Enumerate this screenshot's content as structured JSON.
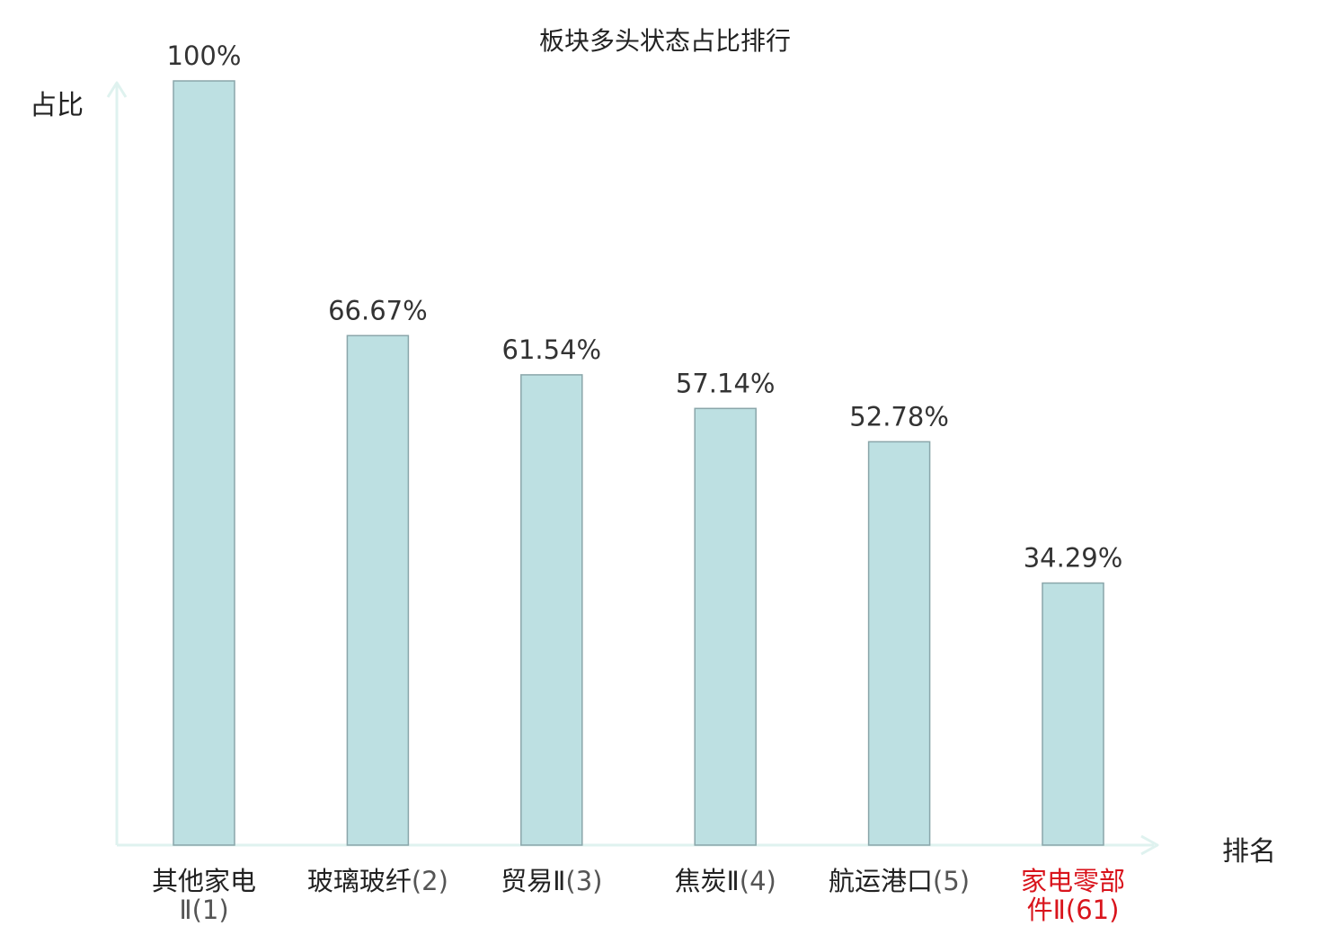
{
  "chart_data": {
    "type": "bar",
    "title": "板块多头状态占比排行",
    "xlabel": "排名",
    "ylabel": "占比",
    "ylim": [
      0,
      100
    ],
    "grid": false,
    "categories": [
      {
        "name": "其他家电",
        "name_wrap": "Ⅱ",
        "rank": "(1)",
        "highlight": false
      },
      {
        "name": "玻璃玻纤",
        "name_wrap": "",
        "rank": "(2)",
        "highlight": false
      },
      {
        "name": "贸易Ⅱ",
        "name_wrap": "",
        "rank": "(3)",
        "highlight": false
      },
      {
        "name": "焦炭Ⅱ",
        "name_wrap": "",
        "rank": "(4)",
        "highlight": false
      },
      {
        "name": "航运港口",
        "name_wrap": "",
        "rank": "(5)",
        "highlight": false
      },
      {
        "name": "家电零部",
        "name_wrap": "件Ⅱ",
        "rank": "(61)",
        "highlight": true
      }
    ],
    "values": [
      100,
      66.67,
      61.54,
      57.14,
      52.78,
      34.29
    ],
    "value_labels": [
      "100%",
      "66.67%",
      "61.54%",
      "57.14%",
      "52.78%",
      "34.29%"
    ],
    "colors": {
      "bar_fill": "#bde0e2",
      "bar_stroke": "#8aa6aa",
      "axis": "#dff2ef",
      "value_text": "#333333",
      "highlight_text": "#d9141c"
    }
  }
}
